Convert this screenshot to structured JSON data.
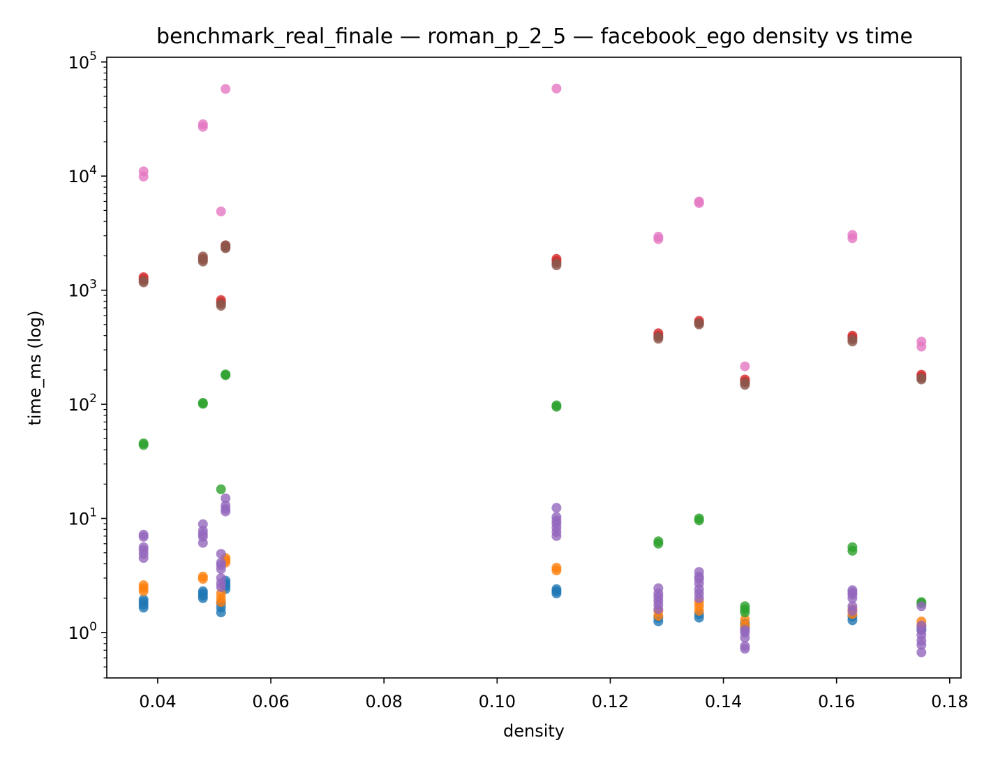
{
  "chart_data": {
    "type": "scatter",
    "title": "benchmark_real_finale — roman_p_2_5 — facebook_ego density vs time",
    "xlabel": "density",
    "ylabel": "time_ms (log)",
    "xlim": [
      0.031,
      0.182
    ],
    "ylim": [
      0.4,
      110000
    ],
    "yscale": "log",
    "grid": false,
    "legend": "none",
    "x_ticks": [
      {
        "value": 0.04,
        "label": "0.04"
      },
      {
        "value": 0.06,
        "label": "0.06"
      },
      {
        "value": 0.08,
        "label": "0.08"
      },
      {
        "value": 0.1,
        "label": "0.10"
      },
      {
        "value": 0.12,
        "label": "0.12"
      },
      {
        "value": 0.14,
        "label": "0.14"
      },
      {
        "value": 0.16,
        "label": "0.16"
      },
      {
        "value": 0.18,
        "label": "0.18"
      }
    ],
    "y_ticks": [
      {
        "value": 1,
        "base": "10",
        "exp": "0"
      },
      {
        "value": 10,
        "base": "10",
        "exp": "1"
      },
      {
        "value": 100,
        "base": "10",
        "exp": "2"
      },
      {
        "value": 1000,
        "base": "10",
        "exp": "3"
      },
      {
        "value": 10000,
        "base": "10",
        "exp": "4"
      },
      {
        "value": 100000,
        "base": "10",
        "exp": "5"
      }
    ],
    "series": [
      {
        "color": "#1f77b4",
        "points": [
          [
            0.0375,
            1.65
          ],
          [
            0.0375,
            1.75
          ],
          [
            0.0375,
            1.85
          ],
          [
            0.0375,
            1.95
          ],
          [
            0.048,
            2.0
          ],
          [
            0.048,
            2.1
          ],
          [
            0.048,
            2.2
          ],
          [
            0.048,
            2.3
          ],
          [
            0.0512,
            1.5
          ],
          [
            0.0512,
            1.65
          ],
          [
            0.0512,
            1.8
          ],
          [
            0.052,
            2.4
          ],
          [
            0.052,
            2.55
          ],
          [
            0.052,
            2.7
          ],
          [
            0.052,
            2.85
          ],
          [
            0.1105,
            2.2
          ],
          [
            0.1105,
            2.3
          ],
          [
            0.1105,
            2.4
          ],
          [
            0.1285,
            1.25
          ],
          [
            0.1285,
            1.35
          ],
          [
            0.1357,
            1.35
          ],
          [
            0.1357,
            1.45
          ],
          [
            0.1438,
            1.1
          ],
          [
            0.1438,
            1.2
          ],
          [
            0.1628,
            1.28
          ],
          [
            0.1628,
            1.38
          ],
          [
            0.175,
            1.05
          ],
          [
            0.175,
            1.1
          ]
        ]
      },
      {
        "color": "#ff7f0e",
        "points": [
          [
            0.0375,
            2.3
          ],
          [
            0.0375,
            2.45
          ],
          [
            0.0375,
            2.6
          ],
          [
            0.048,
            2.95
          ],
          [
            0.048,
            3.1
          ],
          [
            0.0512,
            1.85
          ],
          [
            0.0512,
            2.0
          ],
          [
            0.0512,
            2.2
          ],
          [
            0.052,
            4.1
          ],
          [
            0.052,
            4.3
          ],
          [
            0.052,
            4.5
          ],
          [
            0.1105,
            3.5
          ],
          [
            0.1105,
            3.7
          ],
          [
            0.1285,
            1.4
          ],
          [
            0.1285,
            1.55
          ],
          [
            0.1357,
            1.55
          ],
          [
            0.1357,
            1.7
          ],
          [
            0.1357,
            1.85
          ],
          [
            0.1438,
            1.15
          ],
          [
            0.1438,
            1.3
          ],
          [
            0.1628,
            1.45
          ],
          [
            0.1628,
            1.6
          ],
          [
            0.175,
            1.15
          ],
          [
            0.175,
            1.25
          ]
        ]
      },
      {
        "color": "#2ca02c",
        "points": [
          [
            0.0375,
            44
          ],
          [
            0.0375,
            45.5
          ],
          [
            0.048,
            101
          ],
          [
            0.048,
            103
          ],
          [
            0.0512,
            18
          ],
          [
            0.052,
            180
          ],
          [
            0.052,
            183
          ],
          [
            0.1105,
            95
          ],
          [
            0.1105,
            98
          ],
          [
            0.1285,
            6.0
          ],
          [
            0.1285,
            6.3
          ],
          [
            0.1357,
            9.6
          ],
          [
            0.1357,
            10.0
          ],
          [
            0.1438,
            1.5
          ],
          [
            0.1438,
            1.6
          ],
          [
            0.1438,
            1.7
          ],
          [
            0.1628,
            5.2
          ],
          [
            0.1628,
            5.6
          ],
          [
            0.175,
            1.8
          ],
          [
            0.175,
            1.85
          ]
        ]
      },
      {
        "color": "#d62728",
        "points": [
          [
            0.0375,
            1250
          ],
          [
            0.0375,
            1300
          ],
          [
            0.048,
            1900
          ],
          [
            0.0512,
            780
          ],
          [
            0.0512,
            820
          ],
          [
            0.052,
            2450
          ],
          [
            0.1105,
            1800
          ],
          [
            0.1105,
            1880
          ],
          [
            0.1285,
            400
          ],
          [
            0.1285,
            420
          ],
          [
            0.1357,
            520
          ],
          [
            0.1357,
            540
          ],
          [
            0.1438,
            158
          ],
          [
            0.1438,
            165
          ],
          [
            0.1628,
            385
          ],
          [
            0.1628,
            400
          ],
          [
            0.175,
            175
          ],
          [
            0.175,
            182
          ]
        ]
      },
      {
        "color": "#9467bd",
        "points": [
          [
            0.0375,
            4.5
          ],
          [
            0.0375,
            4.9
          ],
          [
            0.0375,
            5.3
          ],
          [
            0.0375,
            5.6
          ],
          [
            0.0375,
            6.9
          ],
          [
            0.0375,
            7.2
          ],
          [
            0.048,
            6.1
          ],
          [
            0.048,
            6.9
          ],
          [
            0.048,
            7.3
          ],
          [
            0.048,
            7.8
          ],
          [
            0.048,
            8.9
          ],
          [
            0.0512,
            2.5
          ],
          [
            0.0512,
            2.7
          ],
          [
            0.0512,
            3.0
          ],
          [
            0.0512,
            3.6
          ],
          [
            0.0512,
            3.9
          ],
          [
            0.0512,
            4.1
          ],
          [
            0.0512,
            4.9
          ],
          [
            0.052,
            11.5
          ],
          [
            0.052,
            12.1
          ],
          [
            0.052,
            13.0
          ],
          [
            0.052,
            15.0
          ],
          [
            0.1105,
            7.0
          ],
          [
            0.1105,
            7.6
          ],
          [
            0.1105,
            8.3
          ],
          [
            0.1105,
            9.0
          ],
          [
            0.1105,
            9.6
          ],
          [
            0.1105,
            10.3
          ],
          [
            0.1105,
            12.4
          ],
          [
            0.1285,
            1.6
          ],
          [
            0.1285,
            1.75
          ],
          [
            0.1285,
            1.9
          ],
          [
            0.1285,
            2.05
          ],
          [
            0.1285,
            2.2
          ],
          [
            0.1285,
            2.45
          ],
          [
            0.1357,
            2.0
          ],
          [
            0.1357,
            2.2
          ],
          [
            0.1357,
            2.4
          ],
          [
            0.1357,
            2.7
          ],
          [
            0.1357,
            2.95
          ],
          [
            0.1357,
            3.1
          ],
          [
            0.1357,
            3.4
          ],
          [
            0.1438,
            0.72
          ],
          [
            0.1438,
            0.76
          ],
          [
            0.1438,
            0.9
          ],
          [
            0.1438,
            1.0
          ],
          [
            0.1438,
            1.05
          ],
          [
            0.1628,
            1.55
          ],
          [
            0.1628,
            1.7
          ],
          [
            0.1628,
            2.0
          ],
          [
            0.1628,
            2.15
          ],
          [
            0.1628,
            2.25
          ],
          [
            0.1628,
            2.35
          ],
          [
            0.175,
            0.67
          ],
          [
            0.175,
            0.78
          ],
          [
            0.175,
            0.85
          ],
          [
            0.175,
            0.95
          ],
          [
            0.175,
            1.05
          ],
          [
            0.175,
            1.15
          ],
          [
            0.175,
            1.7
          ]
        ]
      },
      {
        "color": "#8c564b",
        "points": [
          [
            0.0375,
            1170
          ],
          [
            0.0375,
            1210
          ],
          [
            0.048,
            1780
          ],
          [
            0.048,
            1850
          ],
          [
            0.048,
            1980
          ],
          [
            0.0512,
            730
          ],
          [
            0.0512,
            760
          ],
          [
            0.052,
            2330
          ],
          [
            0.052,
            2380
          ],
          [
            0.052,
            2480
          ],
          [
            0.1105,
            1650
          ],
          [
            0.1105,
            1720
          ],
          [
            0.1285,
            375
          ],
          [
            0.1285,
            390
          ],
          [
            0.1357,
            500
          ],
          [
            0.1357,
            515
          ],
          [
            0.1438,
            148
          ],
          [
            0.1438,
            155
          ],
          [
            0.1628,
            355
          ],
          [
            0.1628,
            370
          ],
          [
            0.175,
            165
          ],
          [
            0.175,
            170
          ]
        ]
      },
      {
        "color": "#e377c2",
        "points": [
          [
            0.0375,
            9900
          ],
          [
            0.0375,
            11000
          ],
          [
            0.048,
            27000
          ],
          [
            0.048,
            28500
          ],
          [
            0.0512,
            4900
          ],
          [
            0.052,
            58000
          ],
          [
            0.1105,
            58500
          ],
          [
            0.1285,
            2800
          ],
          [
            0.1285,
            2950
          ],
          [
            0.1357,
            5800
          ],
          [
            0.1357,
            6000
          ],
          [
            0.1438,
            215
          ],
          [
            0.1628,
            2850
          ],
          [
            0.1628,
            3050
          ],
          [
            0.175,
            320
          ],
          [
            0.175,
            355
          ]
        ]
      }
    ]
  }
}
